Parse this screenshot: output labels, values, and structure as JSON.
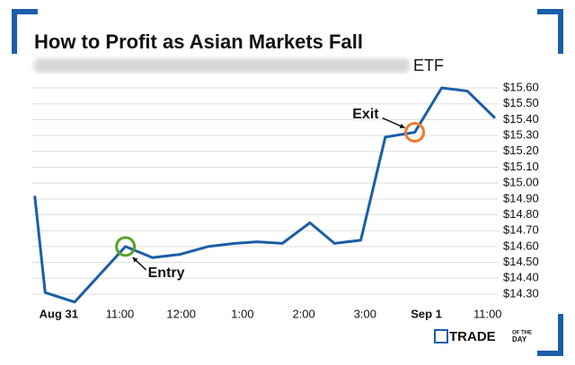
{
  "chart_data": {
    "type": "line",
    "title": "How to Profit as Asian Markets Fall",
    "subtitle": "ETF",
    "x": [
      -0.39,
      -0.22,
      0.26,
      1.09,
      1.53,
      1.97,
      2.44,
      2.88,
      3.24,
      3.65,
      4.1,
      4.5,
      4.93,
      5.33,
      5.81,
      6.25,
      6.67,
      7.12
    ],
    "series": [
      {
        "name": "ETF",
        "color": "#1a5ea8",
        "values": [
          14.92,
          14.31,
          14.25,
          14.6,
          14.53,
          14.55,
          14.6,
          14.62,
          14.63,
          14.62,
          14.75,
          14.62,
          14.64,
          15.29,
          15.32,
          15.6,
          15.58,
          15.41
        ]
      }
    ],
    "xlim": [
      -0.4,
      7.15
    ],
    "xticks": [
      {
        "value": 0,
        "label": "Aug 31"
      },
      {
        "value": 1,
        "label": "11:00"
      },
      {
        "value": 2,
        "label": "12:00"
      },
      {
        "value": 3,
        "label": "1:00"
      },
      {
        "value": 4,
        "label": "2:00"
      },
      {
        "value": 5,
        "label": "3:00"
      },
      {
        "value": 6,
        "label": "Sep 1"
      },
      {
        "value": 7,
        "label": "11:00"
      }
    ],
    "ylim": [
      14.24,
      15.66
    ],
    "yticks": [
      {
        "value": 14.3,
        "label": "$14.30"
      },
      {
        "value": 14.4,
        "label": "$14.40"
      },
      {
        "value": 14.5,
        "label": "$14.50"
      },
      {
        "value": 14.6,
        "label": "$14.60"
      },
      {
        "value": 14.7,
        "label": "$14.70"
      },
      {
        "value": 14.8,
        "label": "$14.80"
      },
      {
        "value": 14.9,
        "label": "$14.90"
      },
      {
        "value": 15.0,
        "label": "$15.00"
      },
      {
        "value": 15.1,
        "label": "$15.10"
      },
      {
        "value": 15.2,
        "label": "$15.20"
      },
      {
        "value": 15.3,
        "label": "$15.30"
      },
      {
        "value": 15.4,
        "label": "$15.40"
      },
      {
        "value": 15.5,
        "label": "$15.50"
      },
      {
        "value": 15.6,
        "label": "$15.60"
      }
    ],
    "grid": true,
    "annotations": [
      {
        "text": "Entry",
        "x": 1.09,
        "y": 14.6,
        "color": "#5aa02c"
      },
      {
        "text": "Exit",
        "x": 5.81,
        "y": 15.32,
        "color": "#f07a2a"
      }
    ],
    "logo": {
      "main": "TRADE",
      "top": "OF THE",
      "bottom": "DAY"
    }
  }
}
